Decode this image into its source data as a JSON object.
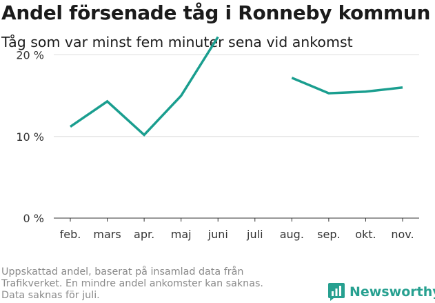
{
  "header": {
    "title": "Andel försenade tåg i Ronneby kommun",
    "subtitle": "Tåg som var minst fem minuter sena vid ankomst"
  },
  "footnote": {
    "lines": [
      "Uppskattad andel, baserat på insamlad data från",
      "Trafikverket. En mindre andel ankomster kan saknas.",
      "Data saknas för juli."
    ]
  },
  "brand": {
    "name": "Newsworthy",
    "icon": "bar-chart-speech-bubble-icon",
    "color": "#27a090"
  },
  "chart_data": {
    "type": "line",
    "categories": [
      "feb.",
      "mars",
      "apr.",
      "maj",
      "juni",
      "juli",
      "aug.",
      "sep.",
      "okt.",
      "nov."
    ],
    "series": [
      {
        "values": [
          11.2,
          14.3,
          10.2,
          15.0,
          22.2,
          null,
          17.2,
          15.3,
          15.5,
          16.0
        ],
        "color": "#1a9e8f"
      }
    ],
    "ylim": [
      0,
      22.5
    ],
    "yticks": [
      0,
      10,
      20
    ],
    "ytick_labels": [
      "0 %",
      "10 %",
      "20 %"
    ],
    "grid": true
  }
}
